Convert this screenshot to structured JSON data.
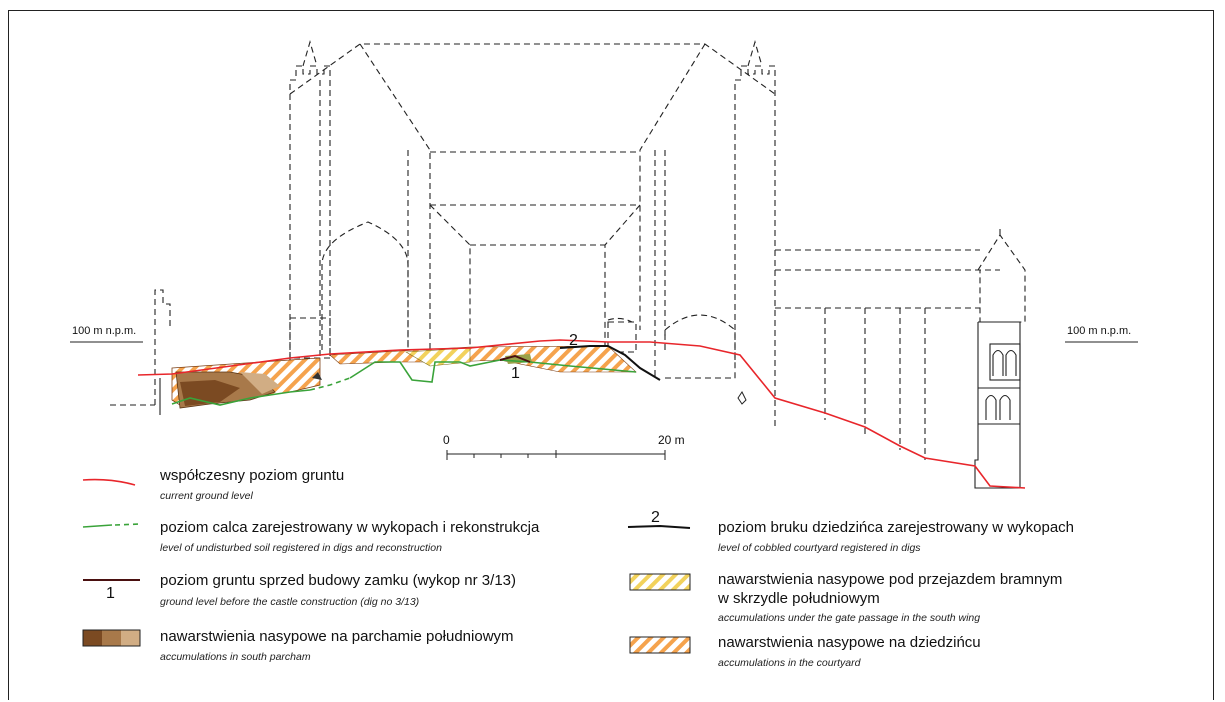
{
  "elevation_labels": {
    "left": "100 m n.p.m.",
    "right": "100 m n.p.m."
  },
  "scale_bar": {
    "start": "0",
    "end": "20 m"
  },
  "profile_markers": {
    "marker_1": "1",
    "marker_2": "2"
  },
  "legend": {
    "items": [
      {
        "title": "współczesny poziom gruntu",
        "subtitle": "current ground level",
        "color": "#e8262b"
      },
      {
        "title": "poziom calca zarejestrowany w wykopach i rekonstrukcja",
        "subtitle": "level of undisturbed soil registered in digs and reconstruction",
        "color": "#3aa33a"
      },
      {
        "title": "poziom gruntu sprzed budowy zamku (wykop nr 3/13)",
        "subtitle": "ground level before the castle construction (dig no 3/13)",
        "color": "#4a1010",
        "marker": "1"
      },
      {
        "title": "nawarstwienia nasypowe na parchamie południowym",
        "subtitle": "accumulations in south parcham",
        "colors": [
          "#7b4a22",
          "#a8794a",
          "#d1ad84"
        ]
      },
      {
        "title": "poziom bruku dziedzińca zarejestrowany w wykopach",
        "subtitle": "level of cobbled courtyard registered in digs",
        "color": "#111111",
        "marker": "2"
      },
      {
        "title": "nawarstwienia nasypowe pod przejazdem bramnym",
        "title_line2": "w skrzydle południowym",
        "subtitle": "accumulations under the gate passage in the south wing",
        "color": "#f2d25c"
      },
      {
        "title": "nawarstwienia nasypowe na dziedzińcu",
        "subtitle": "accumulations in the courtyard",
        "color": "#f5a34d"
      }
    ]
  }
}
